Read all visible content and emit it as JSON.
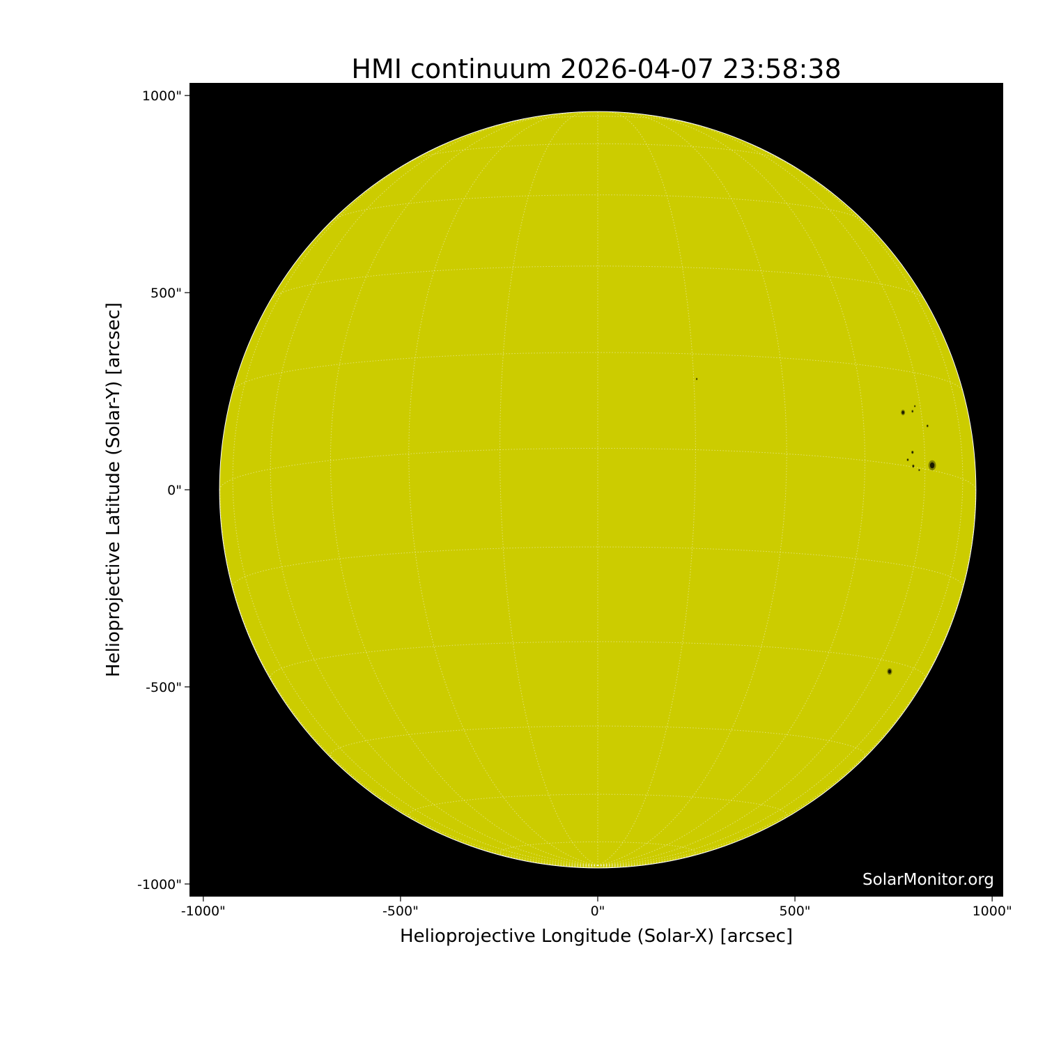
{
  "chart_data": {
    "type": "heatmap",
    "title": "HMI continuum 2026-04-07 23:58:38",
    "xlabel": "Helioprojective Longitude (Solar-X) [arcsec]",
    "ylabel": "Helioprojective Latitude (Solar-Y) [arcsec]",
    "xlim": [
      -1035,
      1028
    ],
    "ylim": [
      -1032,
      1032
    ],
    "xticks": [
      {
        "value": -1000,
        "label": "-1000\""
      },
      {
        "value": -500,
        "label": "-500\""
      },
      {
        "value": 0,
        "label": "0\""
      },
      {
        "value": 500,
        "label": "500\""
      },
      {
        "value": 1000,
        "label": "1000\""
      }
    ],
    "yticks": [
      {
        "value": 1000,
        "label": "1000\""
      },
      {
        "value": 500,
        "label": "500\""
      },
      {
        "value": 0,
        "label": "0\""
      },
      {
        "value": -500,
        "label": "-500\""
      },
      {
        "value": -1000,
        "label": "-1000\""
      }
    ],
    "solar_radius_arcsec": 958,
    "grid": true,
    "grid_spacing_deg": 15,
    "colors": {
      "disk": "#cccc00",
      "background": "#000000",
      "grid": "#ffffff",
      "spot": "#1a1a00"
    },
    "sunspots": [
      {
        "x": 848,
        "y": 62,
        "size": 9
      },
      {
        "x": 774,
        "y": 196,
        "size": 5
      },
      {
        "x": 740,
        "y": -461,
        "size": 6
      },
      {
        "x": 251,
        "y": 281,
        "size": 2
      },
      {
        "x": 798,
        "y": 199,
        "size": 2.5
      },
      {
        "x": 804,
        "y": 212,
        "size": 2
      },
      {
        "x": 836,
        "y": 162,
        "size": 2.5
      },
      {
        "x": 798,
        "y": 95,
        "size": 3
      },
      {
        "x": 786,
        "y": 76,
        "size": 2.5
      },
      {
        "x": 800,
        "y": 60,
        "size": 3
      },
      {
        "x": 815,
        "y": 50,
        "size": 2
      }
    ],
    "watermark": "SolarMonitor.org"
  }
}
